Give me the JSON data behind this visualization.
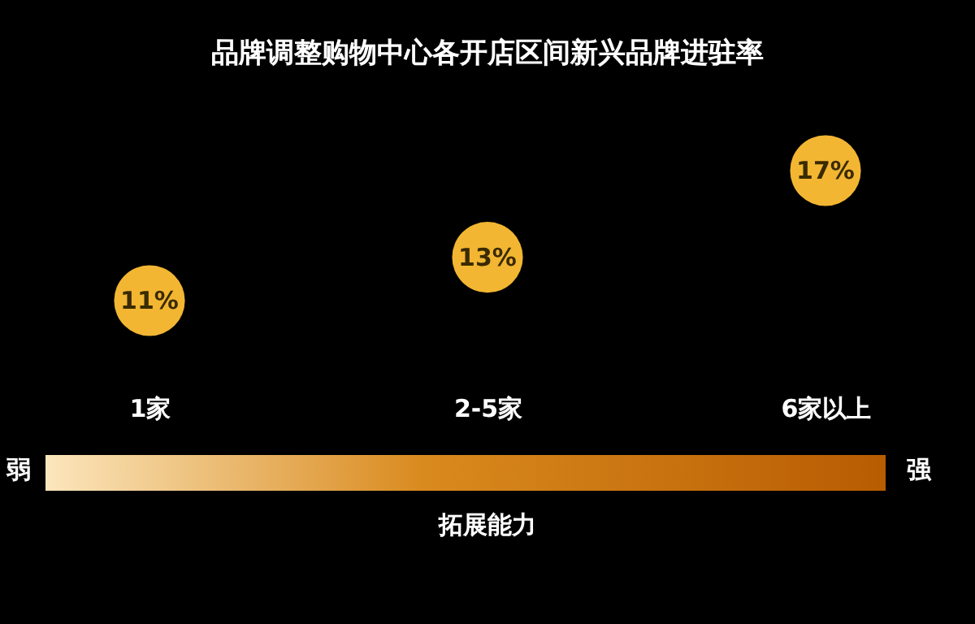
{
  "chart_data": {
    "type": "scatter",
    "title": "品牌调整购物中心各开店区间新兴品牌进驻率",
    "categories": [
      "1家",
      "2-5家",
      "6家以上"
    ],
    "values": [
      11,
      13,
      17
    ],
    "color": "#f2b632",
    "data_labels": true,
    "value_labels": [
      "11%",
      "13%",
      "17%"
    ],
    "marker": "circle",
    "grid": false,
    "annotations": [
      "弱",
      "强",
      "拓展能力"
    ]
  }
}
